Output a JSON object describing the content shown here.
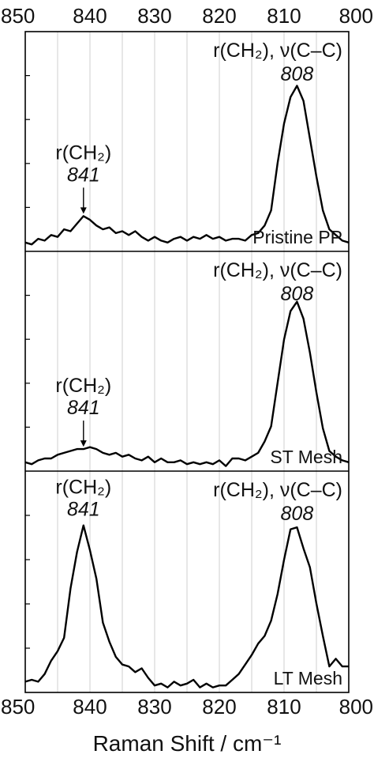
{
  "chart_data": {
    "type": "line",
    "xlabel": "Raman Shift / cm⁻¹",
    "xlim": [
      850,
      800
    ],
    "x_ticks": [
      850,
      840,
      830,
      820,
      810,
      800
    ],
    "grid": true,
    "colors": {
      "line": "#000000",
      "grid": "#cfcfcf",
      "frame": "#000000"
    },
    "x": [
      850,
      849,
      848,
      847,
      846,
      845,
      844,
      843,
      842,
      841,
      840,
      839,
      838,
      837,
      836,
      835,
      834,
      833,
      832,
      831,
      830,
      829,
      828,
      827,
      826,
      825,
      824,
      823,
      822,
      821,
      820,
      819,
      818,
      817,
      816,
      815,
      814,
      813,
      812,
      811,
      810,
      809,
      808,
      807,
      806,
      805,
      804,
      803,
      802,
      801,
      800
    ],
    "panels": [
      {
        "name": "Pristine PP",
        "ylim": [
          0,
          1
        ],
        "values": [
          0.03,
          0.02,
          0.05,
          0.04,
          0.07,
          0.06,
          0.1,
          0.09,
          0.13,
          0.17,
          0.15,
          0.12,
          0.1,
          0.11,
          0.08,
          0.09,
          0.07,
          0.09,
          0.06,
          0.04,
          0.06,
          0.04,
          0.03,
          0.05,
          0.06,
          0.04,
          0.06,
          0.05,
          0.07,
          0.05,
          0.06,
          0.04,
          0.05,
          0.05,
          0.04,
          0.07,
          0.08,
          0.12,
          0.2,
          0.45,
          0.66,
          0.8,
          0.86,
          0.78,
          0.58,
          0.38,
          0.2,
          0.1,
          0.07,
          0.04,
          0.03
        ],
        "annotations": [
          {
            "label": "r(CH₂)",
            "number": "841",
            "x": 841,
            "arrow": true
          },
          {
            "label": "r(CH₂), ν(C–C)",
            "number": "808",
            "x": 808,
            "arrow": false
          }
        ]
      },
      {
        "name": "ST Mesh",
        "ylim": [
          0,
          1
        ],
        "values": [
          0.03,
          0.02,
          0.04,
          0.05,
          0.05,
          0.07,
          0.08,
          0.09,
          0.1,
          0.1,
          0.11,
          0.1,
          0.08,
          0.07,
          0.08,
          0.06,
          0.07,
          0.05,
          0.04,
          0.06,
          0.03,
          0.05,
          0.03,
          0.03,
          0.04,
          0.02,
          0.03,
          0.02,
          0.03,
          0.02,
          0.04,
          0.01,
          0.05,
          0.05,
          0.04,
          0.06,
          0.08,
          0.14,
          0.22,
          0.45,
          0.68,
          0.83,
          0.88,
          0.79,
          0.61,
          0.4,
          0.21,
          0.09,
          0.06,
          0.04,
          0.03
        ],
        "annotations": [
          {
            "label": "r(CH₂)",
            "number": "841",
            "x": 841,
            "arrow": true
          },
          {
            "label": "r(CH₂), ν(C–C)",
            "number": "808",
            "x": 808,
            "arrow": false
          }
        ]
      },
      {
        "name": "LT Mesh",
        "ylim": [
          0,
          1
        ],
        "values": [
          0.04,
          0.05,
          0.04,
          0.08,
          0.15,
          0.2,
          0.27,
          0.53,
          0.72,
          0.86,
          0.73,
          0.58,
          0.35,
          0.25,
          0.17,
          0.13,
          0.12,
          0.09,
          0.11,
          0.06,
          0.02,
          0.03,
          0.01,
          0.04,
          0.02,
          0.03,
          0.05,
          0.01,
          0.03,
          0.01,
          0.02,
          0.02,
          0.05,
          0.08,
          0.13,
          0.18,
          0.24,
          0.28,
          0.36,
          0.5,
          0.68,
          0.84,
          0.85,
          0.74,
          0.64,
          0.45,
          0.28,
          0.12,
          0.16,
          0.12,
          0.12
        ],
        "annotations": [
          {
            "label": "r(CH₂)",
            "number": "841",
            "x": 841,
            "arrow": false
          },
          {
            "label": "r(CH₂), ν(C–C)",
            "number": "808",
            "x": 808,
            "arrow": false
          }
        ]
      }
    ]
  }
}
